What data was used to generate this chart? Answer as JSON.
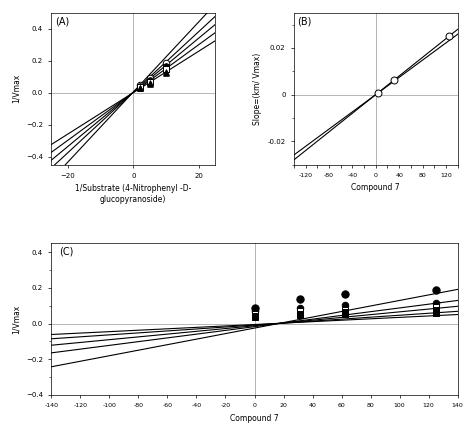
{
  "panel_A": {
    "title": "(A)",
    "xlabel": "1/Substrate (4-Nitrophenyl -D-\nglucopyranoside)",
    "ylabel": "1/Vmax",
    "xlim": [
      -25,
      25
    ],
    "ylim": [
      -0.45,
      0.5
    ],
    "xticks": [
      -20,
      0,
      20
    ],
    "yticks": [
      -0.4,
      -0.2,
      0,
      0.2,
      0.4
    ],
    "vline_x": 0,
    "hline_y": 0,
    "lines": [
      {
        "slope": 0.022,
        "intercept": 0.005
      },
      {
        "slope": 0.019,
        "intercept": 0.004
      },
      {
        "slope": 0.017,
        "intercept": 0.003
      },
      {
        "slope": 0.015,
        "intercept": 0.002
      },
      {
        "slope": 0.013,
        "intercept": 0.001
      }
    ],
    "markers": [
      {
        "x": [
          2,
          5,
          10
        ],
        "y": [
          0.049,
          0.095,
          0.185
        ],
        "marker": "o",
        "fc": "white",
        "ec": "black",
        "s": 22
      },
      {
        "x": [
          2,
          5,
          10
        ],
        "y": [
          0.042,
          0.079,
          0.165
        ],
        "marker": "o",
        "fc": "black",
        "ec": "black",
        "s": 16
      },
      {
        "x": [
          2,
          5,
          10
        ],
        "y": [
          0.037,
          0.068,
          0.147
        ],
        "marker": "s",
        "fc": "white",
        "ec": "black",
        "s": 16
      },
      {
        "x": [
          2,
          5,
          10
        ],
        "y": [
          0.032,
          0.06,
          0.133
        ],
        "marker": "^",
        "fc": "white",
        "ec": "black",
        "s": 16
      },
      {
        "x": [
          2,
          5,
          10
        ],
        "y": [
          0.027,
          0.054,
          0.122
        ],
        "marker": "^",
        "fc": "black",
        "ec": "black",
        "s": 16
      }
    ]
  },
  "panel_B": {
    "title": "(B)",
    "xlabel": "Compound 7",
    "ylabel": "Slope=(km/ Vmax)",
    "xlim": [
      -140,
      140
    ],
    "ylim": [
      -0.03,
      0.035
    ],
    "xticks": [
      -140,
      -120,
      -100,
      -80,
      -60,
      -40,
      -20,
      0,
      20,
      40,
      60,
      80,
      100,
      120,
      140
    ],
    "yticks": [
      -0.02,
      0,
      0.02
    ],
    "vline_x": 0,
    "hline_y": 0,
    "lines": [
      {
        "slope": 0.0002,
        "intercept": 0.0
      },
      {
        "slope": 0.000185,
        "intercept": 0.0
      }
    ],
    "markers": [
      {
        "x": [
          3.9,
          31.25,
          125.0
        ],
        "y": [
          0.00078,
          0.00625,
          0.025
        ],
        "marker": "o",
        "fc": "white",
        "ec": "black",
        "s": 25
      }
    ]
  },
  "panel_C": {
    "title": "(C)",
    "xlabel": "Compound 7",
    "ylabel": "1/Vmax",
    "xlim": [
      -140,
      140
    ],
    "ylim": [
      -0.4,
      0.45
    ],
    "xticks": [
      -140,
      -120,
      -100,
      -80,
      -60,
      -40,
      -20,
      0,
      20,
      40,
      60,
      80,
      100,
      120,
      140
    ],
    "yticks": [
      -0.4,
      -0.2,
      0,
      0.2,
      0.4
    ],
    "vline_x": 0,
    "hline_y": 0,
    "lines": [
      {
        "slope": 0.00155,
        "intercept": -0.025
      },
      {
        "slope": 0.00105,
        "intercept": -0.017
      },
      {
        "slope": 0.00078,
        "intercept": -0.012
      },
      {
        "slope": 0.00055,
        "intercept": -0.008
      },
      {
        "slope": 0.0004,
        "intercept": -0.005
      }
    ],
    "markers": [
      {
        "x": [
          0,
          31.25,
          62.5,
          125.0
        ],
        "y": [
          0.09,
          0.138,
          0.165,
          0.19
        ],
        "marker": "o",
        "fc": "black",
        "ec": "black",
        "s": 28
      },
      {
        "x": [
          0,
          31.25,
          62.5,
          125.0
        ],
        "y": [
          0.068,
          0.09,
          0.103,
          0.115
        ],
        "marker": "o",
        "fc": "black",
        "ec": "black",
        "s": 22
      },
      {
        "x": [
          0,
          31.25,
          62.5,
          125.0
        ],
        "y": [
          0.054,
          0.07,
          0.078,
          0.092
        ],
        "marker": "s",
        "fc": "white",
        "ec": "black",
        "s": 20
      },
      {
        "x": [
          0,
          31.25,
          62.5,
          125.0
        ],
        "y": [
          0.044,
          0.056,
          0.063,
          0.075
        ],
        "marker": "s",
        "fc": "black",
        "ec": "black",
        "s": 18
      },
      {
        "x": [
          0,
          31.25,
          62.5,
          125.0
        ],
        "y": [
          0.036,
          0.046,
          0.052,
          0.062
        ],
        "marker": "s",
        "fc": "black",
        "ec": "black",
        "s": 15
      }
    ]
  },
  "fig_width": 4.67,
  "fig_height": 4.34,
  "dpi": 100
}
